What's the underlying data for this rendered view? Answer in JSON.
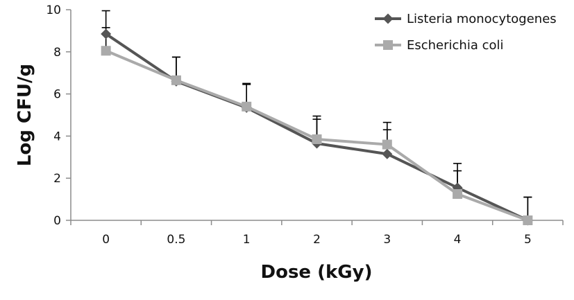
{
  "chart_data": {
    "type": "line",
    "categories": [
      "0",
      "0.5",
      "1",
      "2",
      "3",
      "4",
      "5"
    ],
    "xlabel": "Dose (kGy)",
    "ylabel": "Log CFU/g",
    "ylim": [
      0,
      10
    ],
    "yticks": [
      "0",
      "2",
      "4",
      "6",
      "8",
      "10"
    ],
    "grid": false,
    "legend_position": "top-right",
    "series": [
      {
        "name": "Listeria monocytogenes",
        "marker": "diamond",
        "color": "#555555",
        "values": [
          8.85,
          6.6,
          5.35,
          3.65,
          3.15,
          1.55,
          0.0
        ],
        "error": [
          1.1,
          1.15,
          1.1,
          1.15,
          1.15,
          1.15,
          1.1
        ]
      },
      {
        "name": "Escherichia coli",
        "marker": "square",
        "color": "#aaaaaa",
        "values": [
          8.05,
          6.65,
          5.4,
          3.85,
          3.6,
          1.25,
          0.0
        ],
        "error": [
          1.1,
          1.1,
          1.1,
          1.1,
          1.05,
          1.1,
          1.1
        ]
      }
    ]
  }
}
